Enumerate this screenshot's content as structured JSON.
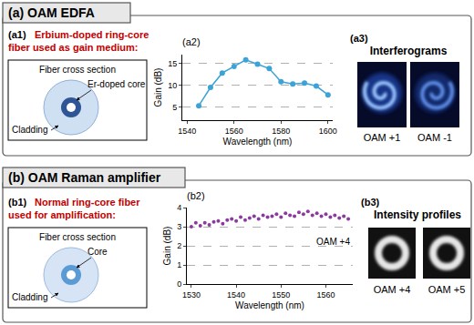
{
  "panel_a": {
    "title": "(a) OAM EDFA",
    "a1": {
      "label": "(a1)",
      "caption": [
        "Erbium-doped ring-core",
        "fiber used as gain medium:"
      ],
      "diagram": {
        "title": "Fiber cross section",
        "core_label": "Er-doped core",
        "cladding_label": "Cladding"
      }
    },
    "a3": {
      "label": "(a3)",
      "title": "Interferograms",
      "images": [
        "OAM +1",
        "OAM -1"
      ]
    }
  },
  "panel_b": {
    "title": "(b) OAM Raman amplifier",
    "b1": {
      "label": "(b1)",
      "caption": [
        "Normal ring-core fiber",
        "used for amplification:"
      ],
      "diagram": {
        "title": "Fiber cross section",
        "core_label": "Core",
        "cladding_label": "Cladding"
      }
    },
    "b3": {
      "label": "(b3)",
      "title": "Intensity profiles",
      "images": [
        "OAM +4",
        "OAM +5"
      ]
    }
  },
  "chart_data": [
    {
      "type": "line",
      "title": "(a2)",
      "x_label": "Wavelength (nm)",
      "y_label": "Gain (dB)",
      "x": [
        1545,
        1550,
        1555,
        1560,
        1565,
        1570,
        1575,
        1580,
        1585,
        1590,
        1595,
        1600
      ],
      "values": [
        5.3,
        9.5,
        12.8,
        14.3,
        15.8,
        14.8,
        13.8,
        10.8,
        10.3,
        10.5,
        9.8,
        7.8
      ],
      "color": "#3ba3d8",
      "marker": "circle",
      "line_style": "solid",
      "xlim": [
        1538,
        1602
      ],
      "ylim": [
        2,
        17
      ],
      "xticks": [
        1540,
        1560,
        1580,
        1600
      ],
      "yticks": [
        5,
        10,
        15
      ],
      "grid": true
    },
    {
      "type": "line",
      "title": "(b2)",
      "x_label": "Wavelength (nm)",
      "y_label": "Gain (dB)",
      "annotation": "OAM +4",
      "x": [
        1530,
        1531,
        1532,
        1533,
        1534,
        1535,
        1536,
        1537,
        1538,
        1539,
        1540,
        1541,
        1542,
        1543,
        1544,
        1545,
        1546,
        1547,
        1548,
        1549,
        1550,
        1551,
        1552,
        1553,
        1554,
        1555,
        1556,
        1557,
        1558,
        1559,
        1560,
        1561,
        1562,
        1563,
        1564,
        1565
      ],
      "values": [
        3.0,
        3.2,
        3.05,
        3.2,
        3.1,
        3.25,
        3.3,
        3.15,
        3.35,
        3.4,
        3.3,
        3.5,
        3.35,
        3.45,
        3.55,
        3.4,
        3.6,
        3.5,
        3.55,
        3.65,
        3.5,
        3.7,
        3.6,
        3.55,
        3.75,
        3.65,
        3.8,
        3.6,
        3.7,
        3.55,
        3.65,
        3.5,
        3.6,
        3.45,
        3.55,
        3.4
      ],
      "color": "#8b3a9e",
      "marker": "circle",
      "line_style": "none",
      "xlim": [
        1529,
        1566
      ],
      "ylim": [
        0,
        4
      ],
      "xticks": [
        1530,
        1540,
        1550,
        1560
      ],
      "yticks": [
        0,
        1,
        2,
        3,
        4
      ],
      "grid": true
    }
  ]
}
